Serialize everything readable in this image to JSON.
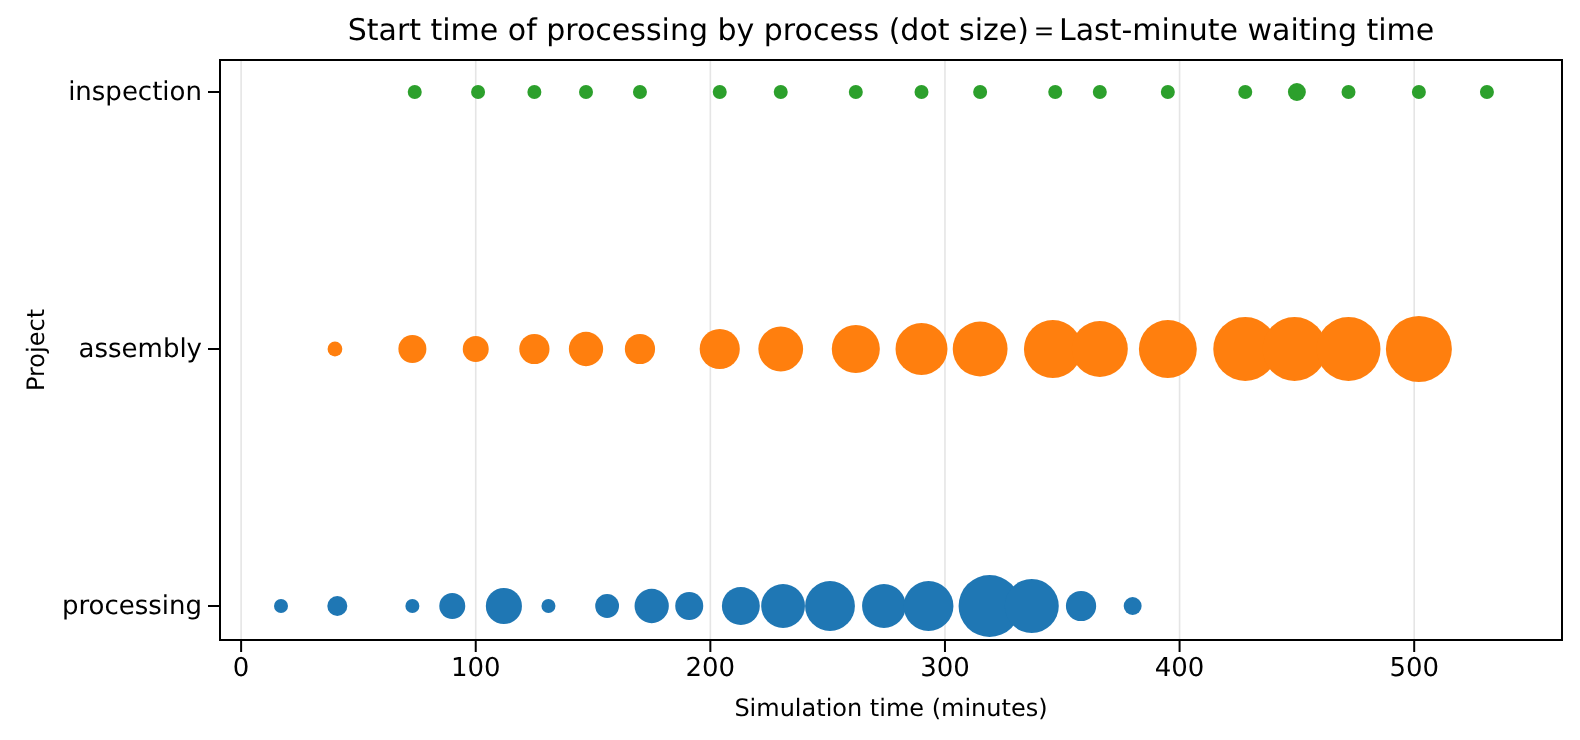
{
  "chart_data": {
    "type": "bubble",
    "orientation": "horizontal",
    "title": "Start time of processing by process (dot size)＝Last-minute waiting time",
    "xlabel": "Simulation time (minutes)",
    "ylabel": "Project",
    "categories": [
      "inspection",
      "assembly",
      "processing"
    ],
    "xlim": [
      -9,
      563
    ],
    "xticks": [
      0,
      100,
      200,
      300,
      400,
      500
    ],
    "grid": "x",
    "series": [
      {
        "color": "#1f77b4",
        "x": [
          "processing",
          "processing",
          "processing",
          "processing",
          "processing",
          "processing",
          "processing",
          "processing",
          "processing",
          "processing",
          "processing",
          "processing",
          "processing",
          "processing",
          "processing",
          "processing",
          "processing",
          "processing"
        ],
        "values": [
          17,
          41,
          73,
          90,
          112,
          131,
          156,
          175,
          191,
          213,
          231,
          251,
          274,
          293,
          319,
          337,
          358,
          380
        ],
        "sizes": [
          0.045,
          0.092,
          0.045,
          0.155,
          0.3,
          0.045,
          0.13,
          0.27,
          0.18,
          0.33,
          0.44,
          0.57,
          0.44,
          0.57,
          0.88,
          0.67,
          0.21,
          0.074
        ]
      },
      {
        "color": "#ff7f0e",
        "x": [
          "assembly",
          "assembly",
          "assembly",
          "assembly",
          "assembly",
          "assembly",
          "assembly",
          "assembly",
          "assembly",
          "assembly",
          "assembly",
          "assembly",
          "assembly",
          "assembly",
          "assembly",
          "assembly",
          "assembly",
          "assembly"
        ],
        "values": [
          40,
          73,
          100,
          125,
          147,
          170,
          204,
          230,
          262,
          290,
          315,
          346,
          366,
          395,
          428,
          449,
          472,
          502
        ],
        "sizes": [
          0.05,
          0.18,
          0.155,
          0.21,
          0.27,
          0.21,
          0.37,
          0.46,
          0.53,
          0.62,
          0.69,
          0.77,
          0.72,
          0.77,
          0.94,
          0.94,
          0.94,
          1
        ]
      },
      {
        "color": "#2ca02c",
        "x": [
          "inspection",
          "inspection",
          "inspection",
          "inspection",
          "inspection",
          "inspection",
          "inspection",
          "inspection",
          "inspection",
          "inspection",
          "inspection",
          "inspection",
          "inspection",
          "inspection",
          "inspection",
          "inspection",
          "inspection",
          "inspection"
        ],
        "values": [
          74,
          101,
          125,
          147,
          170,
          204,
          230,
          262,
          290,
          315,
          347,
          366,
          395,
          428,
          450,
          472,
          502,
          531
        ],
        "sizes": [
          0.045,
          0.045,
          0.045,
          0.045,
          0.045,
          0.045,
          0.045,
          0.045,
          0.045,
          0.045,
          0.045,
          0.045,
          0.045,
          0.045,
          0.074,
          0.045,
          0.045,
          0.045
        ]
      }
    ]
  }
}
